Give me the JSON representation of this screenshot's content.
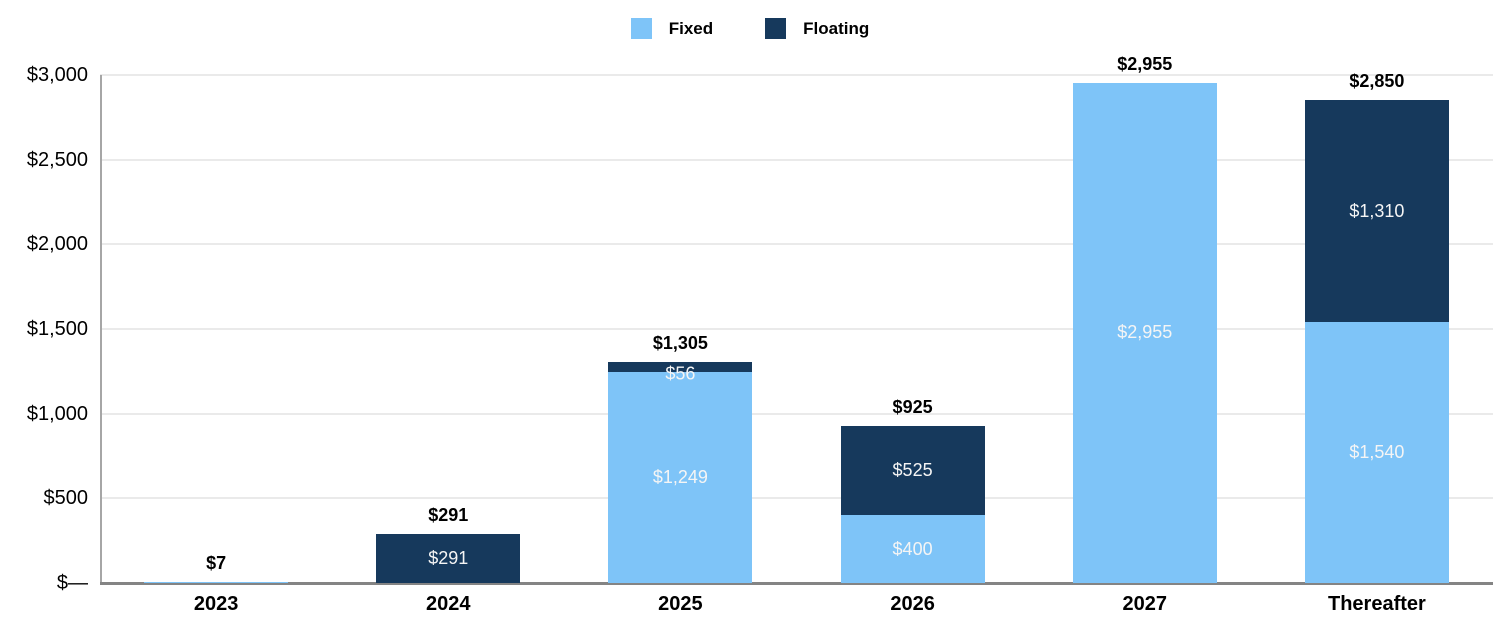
{
  "chart_data": {
    "type": "bar",
    "stacked": true,
    "title": "",
    "xlabel": "",
    "ylabel": "",
    "legend": [
      {
        "label": "Fixed",
        "color": "#7EC4F8"
      },
      {
        "label": "Floating",
        "color": "#16395C"
      }
    ],
    "legend_position": "top-center",
    "grid": true,
    "categories": [
      "2023",
      "2024",
      "2025",
      "2026",
      "2027",
      "Thereafter"
    ],
    "y_axis": {
      "min": 0,
      "max": 3000,
      "step": 500,
      "tick_labels": [
        "$—",
        "$500",
        "$1,000",
        "$1,500",
        "$2,000",
        "$2,500",
        "$3,000"
      ]
    },
    "bars": [
      {
        "category": "2023",
        "total": 7,
        "total_label": "$7",
        "segments": [
          {
            "series": "Fixed",
            "value": 7,
            "label": ""
          }
        ],
        "note": "bar is ~1px tall; segment split not visible in chart"
      },
      {
        "category": "2024",
        "total": 291,
        "total_label": "$291",
        "segments": [
          {
            "series": "Floating",
            "value": 291,
            "label": "$291"
          }
        ]
      },
      {
        "category": "2025",
        "total": 1305,
        "total_label": "$1,305",
        "segments": [
          {
            "series": "Fixed",
            "value": 1249,
            "label": "$1,249"
          },
          {
            "series": "Floating",
            "value": 56,
            "label": "$56"
          }
        ]
      },
      {
        "category": "2026",
        "total": 925,
        "total_label": "$925",
        "segments": [
          {
            "series": "Fixed",
            "value": 400,
            "label": "$400"
          },
          {
            "series": "Floating",
            "value": 525,
            "label": "$525"
          }
        ]
      },
      {
        "category": "2027",
        "total": 2955,
        "total_label": "$2,955",
        "segments": [
          {
            "series": "Fixed",
            "value": 2955,
            "label": "$2,955"
          }
        ]
      },
      {
        "category": "Thereafter",
        "total": 2850,
        "total_label": "$2,850",
        "segments": [
          {
            "series": "Fixed",
            "value": 1540,
            "label": "$1,540"
          },
          {
            "series": "Floating",
            "value": 1310,
            "label": "$1,310"
          }
        ]
      }
    ],
    "colors": {
      "gridline": "#EAEAEA",
      "y_axis_line": "#A6A6A6",
      "baseline": "#848484",
      "segment_label_text": "#F5F5F5",
      "axis_text": "#000000"
    }
  }
}
